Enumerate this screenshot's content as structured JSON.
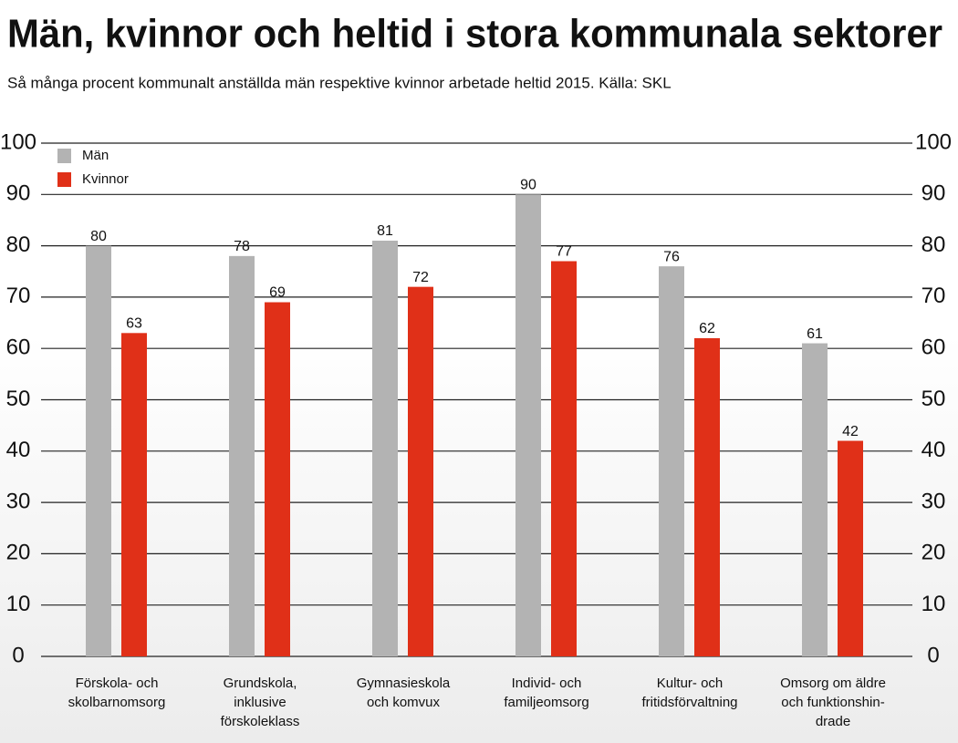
{
  "chart_data": {
    "type": "bar",
    "title": "Män, kvinnor och heltid i stora kommunala sektorer",
    "subtitle": "Så många procent kommunalt anställda män respektive kvinnor arbetade heltid 2015. Källa: SKL",
    "categories": [
      [
        "Förskola- och",
        "skolbarnomsorg"
      ],
      [
        "Grundskola,",
        "inklusive",
        "förskoleklass"
      ],
      [
        "Gymnasieskola",
        "och komvux"
      ],
      [
        "Individ- och",
        "familjeomsorg"
      ],
      [
        "Kultur- och",
        "fritidsförvaltning"
      ],
      [
        "Omsorg om äldre",
        "och funktionshin-",
        "drade"
      ]
    ],
    "series": [
      {
        "name": "Män",
        "color": "#b3b3b3",
        "values": [
          80,
          78,
          81,
          90,
          76,
          61
        ]
      },
      {
        "name": "Kvinnor",
        "color": "#e03018",
        "values": [
          63,
          69,
          72,
          77,
          62,
          42
        ]
      }
    ],
    "ylim": [
      0,
      100
    ],
    "yticks": [
      0,
      10,
      20,
      30,
      40,
      50,
      60,
      70,
      80,
      90,
      100
    ],
    "grid": true
  }
}
